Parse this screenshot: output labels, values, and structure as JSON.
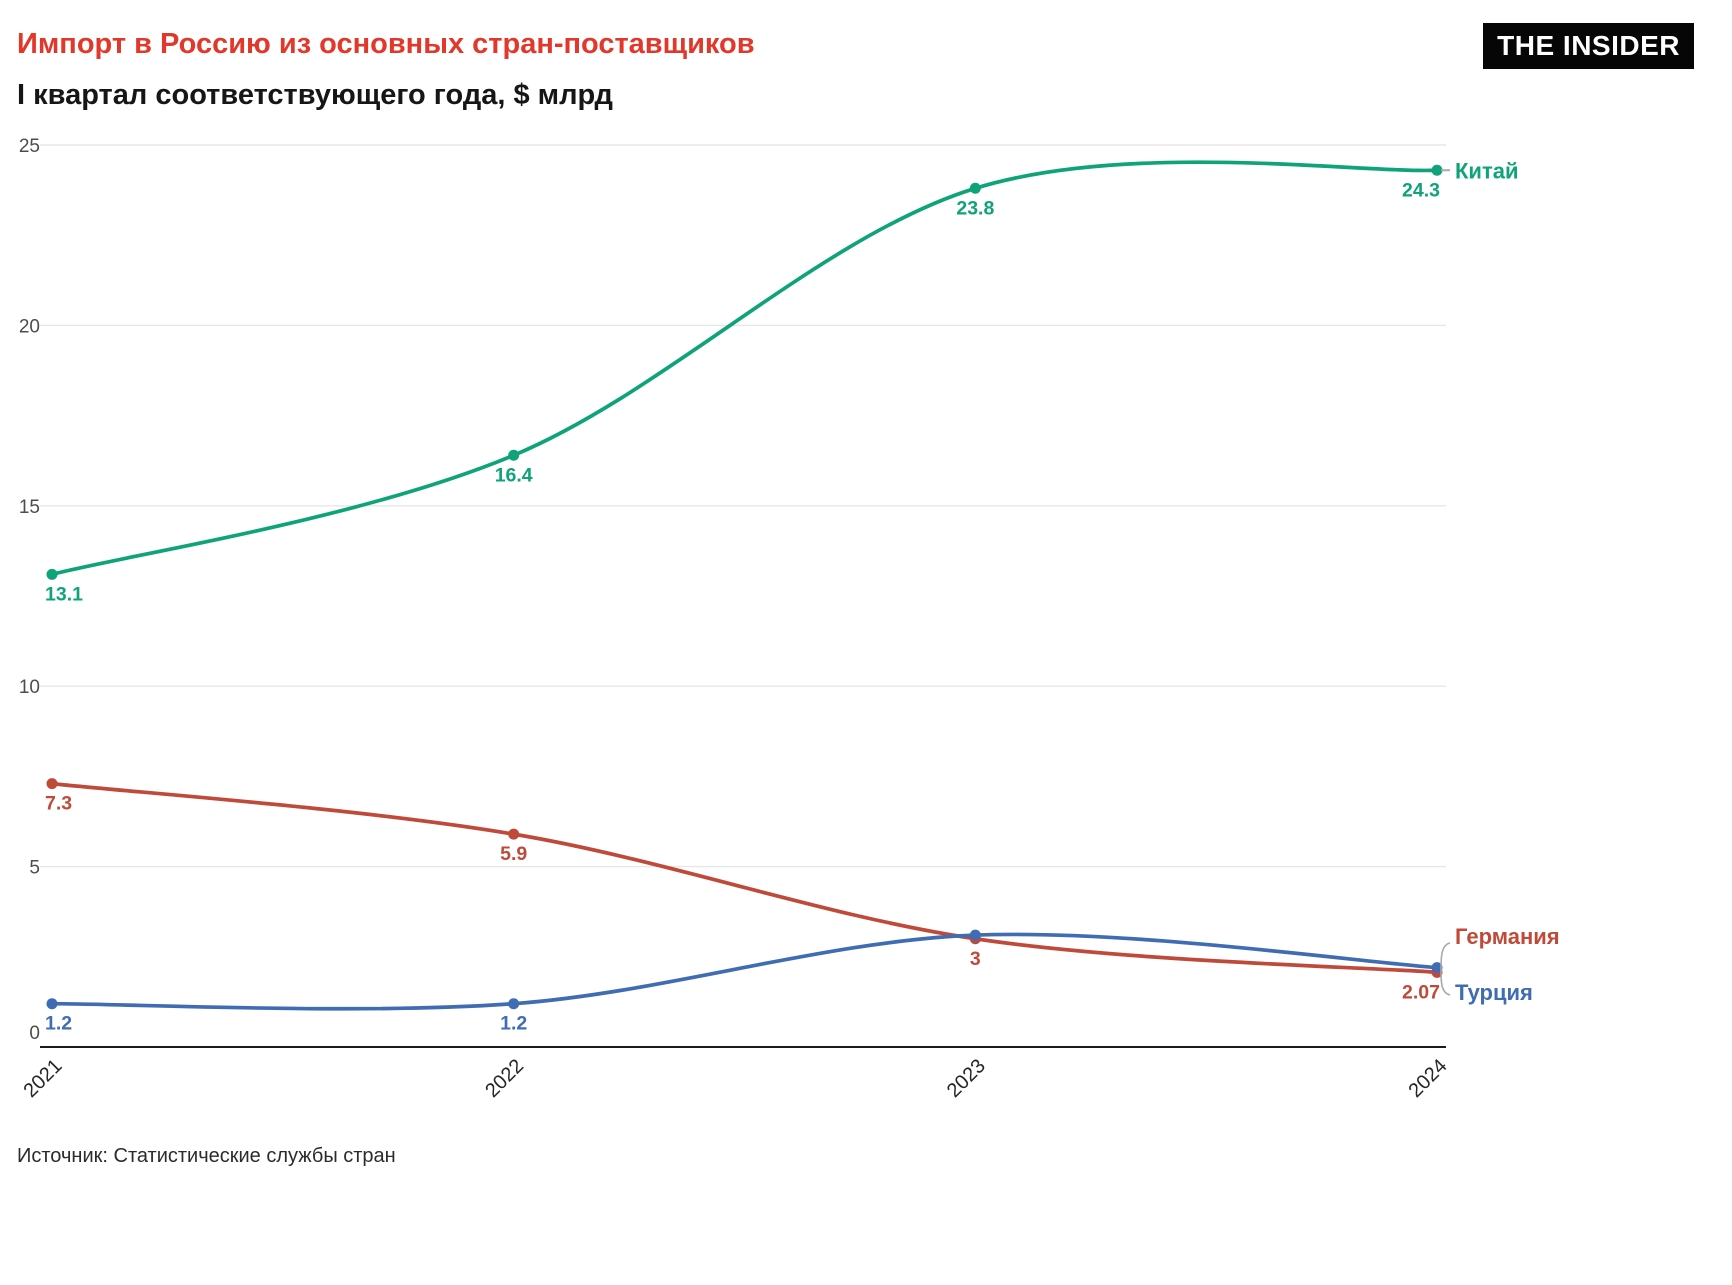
{
  "header": {
    "title": "Импорт в Россию из основных стран-поставщиков",
    "subtitle": "I квартал соответствующего года, $ млрд",
    "logo": "THE INSIDER"
  },
  "footer": {
    "source": "Источник: Статистические службы стран"
  },
  "colors": {
    "accent": "#e2382b",
    "axis": "#1a1a1a",
    "grid": "#e7e7e7",
    "tick": "#4d4d4d",
    "xtick": "#262626",
    "connector": "#a9a9a9"
  },
  "chart_data": {
    "type": "line",
    "title": "Импорт в Россию из основных стран-поставщиков",
    "subtitle": "I квартал соответствующего года, $ млрд",
    "x_labels": [
      "2021",
      "2022",
      "2023",
      "2024"
    ],
    "ylim": [
      0,
      25
    ],
    "y_ticks": [
      0,
      5,
      10,
      15,
      20,
      25
    ],
    "grid": true,
    "legend_position": "end-of-line",
    "series": [
      {
        "name": "Китай",
        "color": "#0fa37a",
        "values": [
          13.1,
          16.4,
          23.8,
          24.3
        ],
        "point_labels": [
          "13.1",
          "16.4",
          "23.8",
          "24.3"
        ]
      },
      {
        "name": "Германия",
        "color": "#c04a3a",
        "values": [
          7.3,
          5.9,
          3,
          2.07
        ],
        "point_labels": [
          "7.3",
          "5.9",
          "3",
          "2.07"
        ]
      },
      {
        "name": "Турция",
        "color": "#3f6cb3",
        "values": [
          1.2,
          1.2,
          3.1,
          2.2
        ],
        "point_labels": [
          "1.2",
          "1.2",
          "",
          ""
        ]
      }
    ]
  }
}
